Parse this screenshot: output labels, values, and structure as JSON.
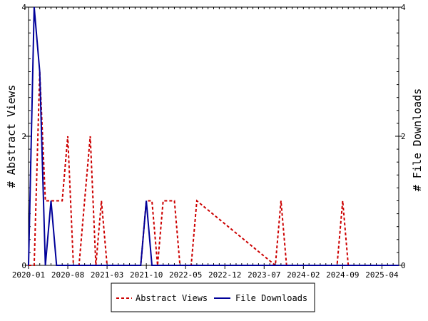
{
  "chart_data": {
    "type": "line",
    "title": "",
    "xlabel": "",
    "ylabel_left": "# Abstract Views",
    "ylabel_right": "# File Downloads",
    "ylim": [
      0,
      4
    ],
    "y_ticks": [
      "0",
      "2",
      "4"
    ],
    "x_ticks": [
      "2020-01",
      "2020-08",
      "2021-03",
      "2021-10",
      "2022-05",
      "2022-12",
      "2023-07",
      "2024-02",
      "2024-09",
      "2025-04"
    ],
    "x_range": [
      "2020-01",
      "2025-07"
    ],
    "grid": false,
    "legend_position": "bottom-center",
    "series": [
      {
        "name": "Abstract Views",
        "color": "#cc0000",
        "style": "dashed",
        "x": [
          "2020-01",
          "2020-02",
          "2020-03",
          "2020-04",
          "2020-05",
          "2020-06",
          "2020-07",
          "2020-08",
          "2020-09",
          "2020-10",
          "2020-11",
          "2020-12",
          "2021-01",
          "2021-02",
          "2021-03",
          "2021-04",
          "2021-05",
          "2021-06",
          "2021-07",
          "2021-08",
          "2021-09",
          "2021-10",
          "2021-11",
          "2021-12",
          "2022-01",
          "2022-02",
          "2022-03",
          "2022-04",
          "2022-05",
          "2022-06",
          "2022-07",
          "2023-09",
          "2023-10",
          "2023-11",
          "2024-08",
          "2024-09",
          "2024-10",
          "2025-07"
        ],
        "values": [
          0,
          0,
          3,
          1,
          1,
          1,
          1,
          2,
          0,
          0,
          1,
          2,
          0,
          1,
          0,
          0,
          0,
          0,
          0,
          0,
          0,
          1,
          1,
          0,
          1,
          1,
          1,
          0,
          0,
          0,
          1,
          0,
          1,
          0,
          0,
          1,
          0,
          0
        ]
      },
      {
        "name": "File Downloads",
        "color": "#000099",
        "style": "solid",
        "x": [
          "2020-01",
          "2020-02",
          "2020-03",
          "2020-04",
          "2020-05",
          "2020-06",
          "2020-07",
          "2021-08",
          "2021-09",
          "2021-10",
          "2021-11",
          "2021-12",
          "2025-07"
        ],
        "values": [
          0,
          4,
          3,
          0,
          1,
          0,
          0,
          0,
          0,
          1,
          0,
          0,
          0
        ]
      }
    ]
  }
}
